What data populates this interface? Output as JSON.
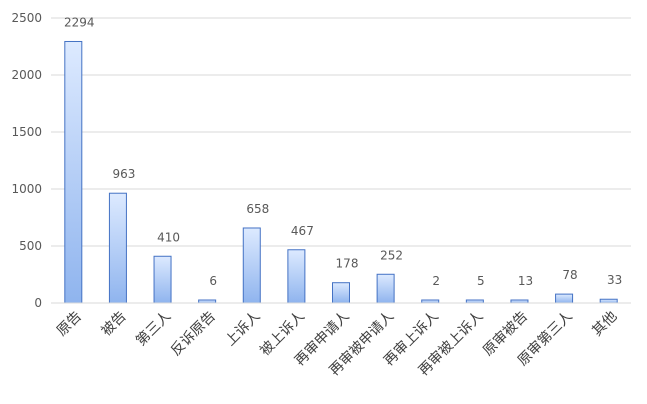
{
  "chart_data": {
    "type": "bar",
    "categories": [
      "原告",
      "被告",
      "第三人",
      "反诉原告",
      "上诉人",
      "被上诉人",
      "再审申请人",
      "再审被申请人",
      "再审上诉人",
      "再审被上诉人",
      "原审被告",
      "原审第三人",
      "其他"
    ],
    "values": [
      2294,
      963,
      410,
      6,
      658,
      467,
      178,
      252,
      2,
      5,
      13,
      78,
      33
    ],
    "data_labels": [
      "2294",
      "963",
      "410",
      "6",
      "658",
      "467",
      "178",
      "252",
      "2",
      "5",
      "13",
      "78",
      "33"
    ],
    "yticks": [
      "0",
      "500",
      "1000",
      "1500",
      "2000",
      "2500"
    ],
    "ylim": [
      0,
      2500
    ],
    "grid": true,
    "legend": "none",
    "bar_fill_top": "#ddeaff",
    "bar_fill_bottom": "#8fb4ee",
    "bar_stroke": "#4472c4",
    "grid_color": "#d9d9d9"
  }
}
